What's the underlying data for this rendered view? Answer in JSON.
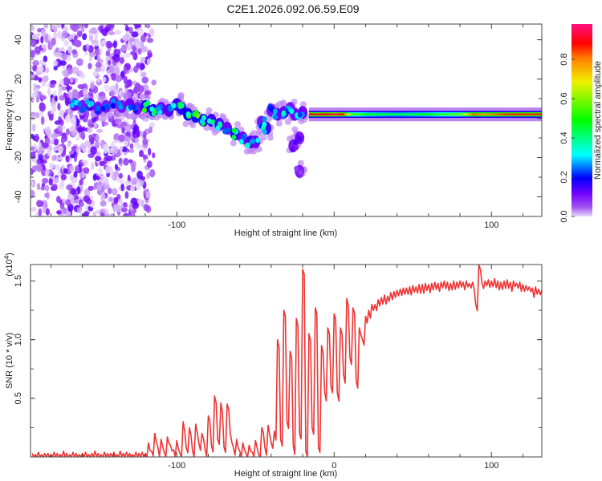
{
  "title": "C2E1.2026.092.06.59.E09",
  "chart_data": [
    {
      "type": "heatmap",
      "name": "spectrogram",
      "xlabel": "Height of straight line (km)",
      "ylabel": "Frequency (Hz)",
      "xlim": [
        -193,
        132
      ],
      "ylim": [
        -50,
        48
      ],
      "xticks": [
        -100,
        0,
        100
      ],
      "xtick_labels": [
        "-100",
        "",
        "100"
      ],
      "yticks": [
        -40,
        -20,
        0,
        20,
        40
      ],
      "ytick_labels": [
        "-40",
        "-20",
        "0",
        "20",
        "40"
      ],
      "colorbar": {
        "label": "Normalized spectral amplitude",
        "range": [
          0,
          0.98
        ],
        "ticks": [
          0.0,
          0.2,
          0.4,
          0.6,
          0.8
        ],
        "tick_labels": [
          "0.0",
          "0.2",
          "0.4",
          "0.6",
          "0.8"
        ]
      },
      "noise_region": {
        "x": [
          -193,
          -120
        ],
        "freq": [
          -50,
          48
        ],
        "amp": [
          0.0,
          0.15
        ]
      },
      "ridge_points": [
        [
          -165,
          7,
          0.35
        ],
        [
          -160,
          6,
          0.3
        ],
        [
          -155,
          7,
          0.4
        ],
        [
          -150,
          5,
          0.3
        ],
        [
          -145,
          6,
          0.25
        ],
        [
          -140,
          8,
          0.3
        ],
        [
          -135,
          6,
          0.3
        ],
        [
          -130,
          7,
          0.35
        ],
        [
          -125,
          5,
          0.3
        ],
        [
          -120,
          6,
          0.55
        ],
        [
          -115,
          4,
          0.5
        ],
        [
          -110,
          5,
          0.35
        ],
        [
          -105,
          4,
          0.4
        ],
        [
          -100,
          7,
          0.45
        ],
        [
          -97,
          5,
          0.5
        ],
        [
          -93,
          2,
          0.55
        ],
        [
          -88,
          1,
          0.6
        ],
        [
          -83,
          -1,
          0.5
        ],
        [
          -78,
          -1,
          0.45
        ],
        [
          -73,
          -3,
          0.4
        ],
        [
          -68,
          -5,
          0.35
        ],
        [
          -63,
          -8,
          0.5
        ],
        [
          -58,
          -10,
          0.35
        ],
        [
          -53,
          -12,
          0.45
        ],
        [
          -50,
          -12,
          0.35
        ],
        [
          -46,
          -2,
          0.3
        ],
        [
          -43,
          -5,
          0.45
        ],
        [
          -40,
          4,
          0.3
        ],
        [
          -36,
          2,
          0.35
        ],
        [
          -32,
          3,
          0.4
        ],
        [
          -28,
          5,
          0.3
        ],
        [
          -25,
          2,
          0.35
        ],
        [
          -22,
          -10,
          0.15
        ],
        [
          -20,
          3,
          0.35
        ],
        [
          -26,
          -14,
          0.15
        ],
        [
          -22,
          -27,
          0.1
        ]
      ],
      "band": {
        "freq": 2,
        "points": [
          [
            -16,
            0.9
          ],
          [
            -10,
            0.9
          ],
          [
            -5,
            0.92
          ],
          [
            0,
            0.95
          ],
          [
            5,
            0.9
          ],
          [
            10,
            0.6
          ],
          [
            20,
            0.5
          ],
          [
            40,
            0.45
          ],
          [
            60,
            0.5
          ],
          [
            80,
            0.6
          ],
          [
            88,
            0.85
          ],
          [
            95,
            0.8
          ],
          [
            110,
            0.88
          ],
          [
            132,
            0.88
          ]
        ]
      }
    },
    {
      "type": "line",
      "name": "snr",
      "xlabel": "Height of straight line (km)",
      "ylabel": "SNR (10 * v/v)",
      "y_multiplier": "(x10",
      "y_multiplier_exp": "4",
      "y_multiplier_close": ")",
      "xlim": [
        -193,
        132
      ],
      "ylim": [
        0,
        1.64
      ],
      "xticks": [
        -100,
        0,
        100
      ],
      "xtick_labels": [
        "-100",
        "0",
        "100"
      ],
      "yticks": [
        0.5,
        1.0,
        1.5
      ],
      "ytick_labels": [
        "0.5",
        "1.0",
        "1.5"
      ],
      "color": "#ee3333",
      "x_start": -192,
      "x_step": 2,
      "values": [
        0.03,
        0.02,
        0.04,
        0.02,
        0.03,
        0.03,
        0.02,
        0.04,
        0.03,
        0.02,
        0.05,
        0.03,
        0.02,
        0.04,
        0.03,
        0.02,
        0.03,
        0.04,
        0.02,
        0.03,
        0.05,
        0.03,
        0.02,
        0.04,
        0.03,
        0.03,
        0.04,
        0.02,
        0.05,
        0.03,
        0.04,
        0.03,
        0.02,
        0.04,
        0.03,
        0.04,
        0.03,
        0.12,
        0.05,
        0.2,
        0.08,
        0.15,
        0.04,
        0.17,
        0.1,
        0.06,
        0.14,
        0.03,
        0.3,
        0.08,
        0.25,
        0.05,
        0.28,
        0.12,
        0.2,
        0.06,
        0.35,
        0.1,
        0.52,
        0.15,
        0.46,
        0.08,
        0.45,
        0.2,
        0.08,
        0.15,
        0.05,
        0.12,
        0.03,
        0.1,
        0.04,
        0.14,
        0.02,
        0.25,
        0.08,
        0.27,
        0.12,
        0.22,
        1.0,
        0.15,
        1.25,
        0.3,
        0.9,
        0.1,
        1.18,
        0.2,
        1.6,
        0.05,
        1.05,
        0.25,
        1.27,
        0.08,
        0.95,
        0.55,
        1.1,
        0.6,
        1.22,
        0.55,
        1.1,
        0.7,
        1.35,
        0.85,
        1.27,
        0.65,
        1.1,
        1.0,
        1.2,
        1.25,
        1.3,
        1.3,
        1.34,
        1.36,
        1.38,
        1.37,
        1.4,
        1.41,
        1.42,
        1.43,
        1.44,
        1.44,
        1.45,
        1.46,
        1.45,
        1.47,
        1.47,
        1.48,
        1.47,
        1.48,
        1.49,
        1.48,
        1.49,
        1.5,
        1.49,
        1.48,
        1.5,
        1.49,
        1.5,
        1.49,
        1.5,
        1.48,
        1.49,
        1.3,
        1.64,
        1.48,
        1.5,
        1.51,
        1.5,
        1.52,
        1.5,
        1.49,
        1.5,
        1.51,
        1.49,
        1.5,
        1.48,
        1.49,
        1.47,
        1.46,
        1.45,
        1.44,
        1.45,
        1.43,
        1.42
      ]
    }
  ]
}
